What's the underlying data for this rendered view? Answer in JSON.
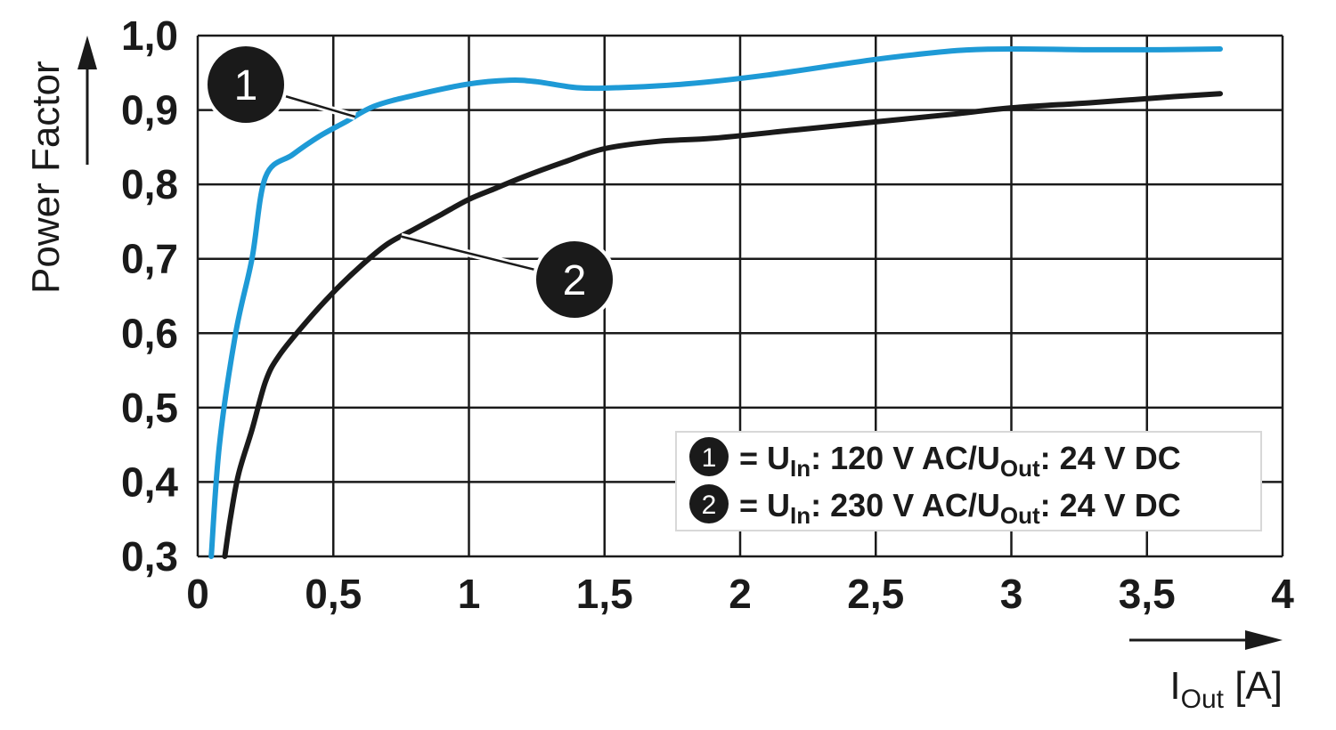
{
  "chart_data": {
    "type": "line",
    "xlabel": {
      "main": "I",
      "sub": "Out",
      "unit": " [A]"
    },
    "ylabel": "Power Factor",
    "xlim": [
      0,
      4
    ],
    "ylim": [
      0.3,
      1.0
    ],
    "x_ticks": [
      "0",
      "0,5",
      "1",
      "1,5",
      "2",
      "2,5",
      "3",
      "3,5",
      "4"
    ],
    "y_ticks": [
      "0,3",
      "0,4",
      "0,5",
      "0,6",
      "0,7",
      "0,8",
      "0,9",
      "1,0"
    ],
    "grid": true,
    "legend_position": "bottom-right",
    "series": [
      {
        "name": "1",
        "color": "#1e9ad6",
        "legend": {
          "prefix": "= U",
          "sub1": "In",
          "mid": ": 120 V AC/U",
          "sub2": "Out",
          "suffix": ": 24 V DC"
        },
        "x": [
          0.05,
          0.08,
          0.14,
          0.2,
          0.25,
          0.35,
          0.45,
          0.55,
          0.65,
          0.8,
          1.0,
          1.15,
          1.25,
          1.4,
          1.55,
          1.8,
          2.1,
          2.5,
          2.8,
          3.0,
          3.3,
          3.55,
          3.77
        ],
        "y": [
          0.3,
          0.45,
          0.6,
          0.7,
          0.81,
          0.84,
          0.865,
          0.885,
          0.905,
          0.92,
          0.935,
          0.94,
          0.938,
          0.93,
          0.93,
          0.935,
          0.947,
          0.968,
          0.98,
          0.982,
          0.981,
          0.981,
          0.982
        ]
      },
      {
        "name": "2",
        "color": "#1a1a1a",
        "legend": {
          "prefix": "= U",
          "sub1": "In",
          "mid": ": 230 V AC/U",
          "sub2": "Out",
          "suffix": ": 24 V DC"
        },
        "x": [
          0.1,
          0.12,
          0.15,
          0.2,
          0.25,
          0.3,
          0.4,
          0.5,
          0.6,
          0.7,
          0.8,
          0.9,
          1.0,
          1.1,
          1.2,
          1.35,
          1.5,
          1.7,
          1.9,
          2.2,
          2.5,
          2.8,
          3.0,
          3.3,
          3.6,
          3.77
        ],
        "y": [
          0.3,
          0.35,
          0.41,
          0.47,
          0.535,
          0.57,
          0.615,
          0.655,
          0.69,
          0.72,
          0.74,
          0.76,
          0.78,
          0.795,
          0.81,
          0.83,
          0.848,
          0.858,
          0.862,
          0.873,
          0.884,
          0.895,
          0.903,
          0.91,
          0.918,
          0.922
        ]
      }
    ],
    "annotations": [
      {
        "label": "1",
        "series": 0,
        "at_x": 0.58
      },
      {
        "label": "2",
        "series": 1,
        "at_x": 0.75
      }
    ]
  }
}
